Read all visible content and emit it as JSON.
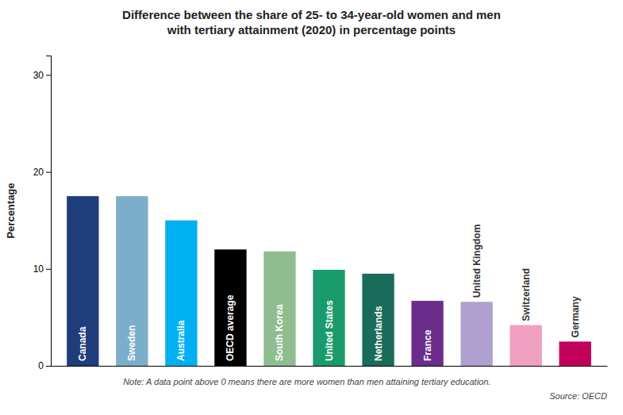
{
  "chart_data": {
    "type": "bar",
    "title": "Difference between the share of 25- to 34-year-old women and men\nwith tertiary attainment (2020) in percentage points",
    "ylabel": "Percentage",
    "categories": [
      "Canada",
      "Sweden",
      "Australia",
      "OECD average",
      "South Korea",
      "United States",
      "Netherlands",
      "France",
      "United Kingdom",
      "Switzerland",
      "Germany"
    ],
    "values": [
      17.5,
      17.5,
      15.0,
      12.0,
      11.8,
      9.9,
      9.5,
      6.7,
      6.6,
      4.2,
      2.5
    ],
    "colors": [
      "#1f3d7a",
      "#7baec8",
      "#00b0f0",
      "#000000",
      "#8fbd8f",
      "#1a9b6b",
      "#1a6b5a",
      "#6b2d8b",
      "#b0a0d0",
      "#f0a0c0",
      "#c0005a"
    ],
    "ylim": [
      0,
      32
    ],
    "yticks": [
      0,
      10,
      20,
      30
    ],
    "grid": false,
    "tick_labels": "y",
    "annotations": [
      "Note: A data point above 0 means there are more women than men attaining tertiary education.",
      "Source: OECD"
    ]
  }
}
